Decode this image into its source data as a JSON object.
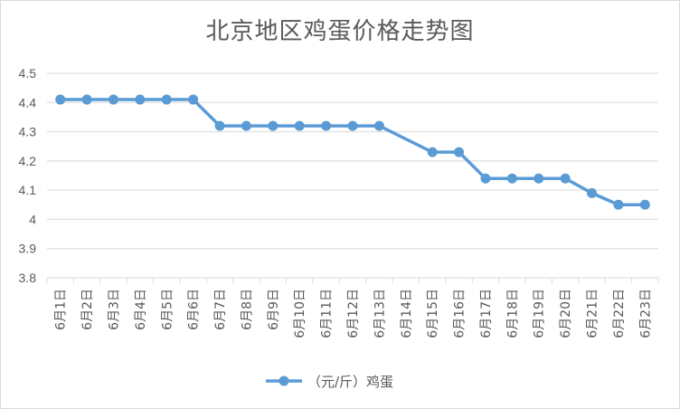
{
  "chart_data": {
    "type": "line",
    "title": "北京地区鸡蛋价格走势图",
    "xlabel": "",
    "ylabel": "",
    "categories": [
      "6月1日",
      "6月2日",
      "6月3日",
      "6月4日",
      "6月5日",
      "6月6日",
      "6月7日",
      "6月8日",
      "6月9日",
      "6月10日",
      "6月11日",
      "6月12日",
      "6月13日",
      "6月14日",
      "6月15日",
      "6月16日",
      "6月17日",
      "6月18日",
      "6月19日",
      "6月20日",
      "6月21日",
      "6月22日",
      "6月23日"
    ],
    "y_ticks": [
      "3.8",
      "3.9",
      "4",
      "4.1",
      "4.2",
      "4.3",
      "4.4",
      "4.5"
    ],
    "ylim": [
      3.8,
      4.5
    ],
    "grid": true,
    "legend_position": "bottom",
    "series": [
      {
        "name": "（元/斤）鸡蛋",
        "color": "#5b9bd5",
        "values": [
          4.41,
          4.41,
          4.41,
          4.41,
          4.41,
          4.41,
          4.32,
          4.32,
          4.32,
          4.32,
          4.32,
          4.32,
          4.32,
          null,
          4.23,
          4.23,
          4.14,
          4.14,
          4.14,
          4.14,
          4.09,
          4.05,
          4.05
        ]
      }
    ]
  }
}
